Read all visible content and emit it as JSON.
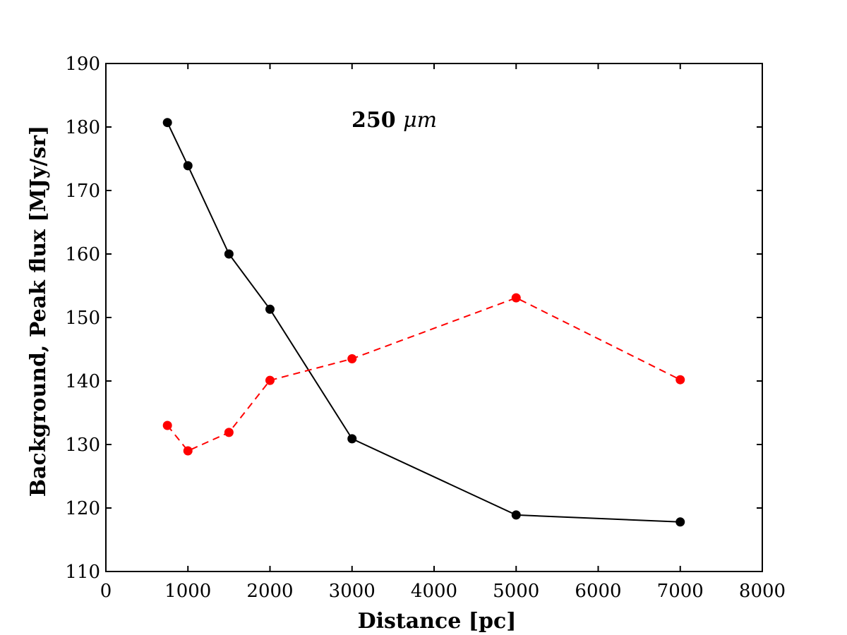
{
  "chart_data": {
    "type": "line",
    "title": "",
    "xlabel": "Distance [pc]",
    "ylabel": "Background, Peak flux [MJy/sr]",
    "xlim": [
      0,
      8000
    ],
    "ylim": [
      110,
      190
    ],
    "xticks": [
      0,
      1000,
      2000,
      3000,
      4000,
      5000,
      6000,
      7000,
      8000
    ],
    "yticks": [
      110,
      120,
      130,
      140,
      150,
      160,
      170,
      180,
      190
    ],
    "annotation": {
      "text_main": "250 ",
      "text_unit": "μm"
    },
    "series": [
      {
        "name": "peak-flux",
        "color": "#000000",
        "style": "solid",
        "x": [
          750,
          1000,
          1500,
          2000,
          3000,
          5000,
          7000
        ],
        "y": [
          180.7,
          173.9,
          160.0,
          151.3,
          130.9,
          118.9,
          117.8
        ]
      },
      {
        "name": "background",
        "color": "#ff0000",
        "style": "dashed",
        "x": [
          750,
          1000,
          1500,
          2000,
          3000,
          5000,
          7000
        ],
        "y": [
          133.0,
          129.0,
          131.9,
          140.1,
          143.5,
          153.1,
          140.2
        ]
      }
    ]
  }
}
